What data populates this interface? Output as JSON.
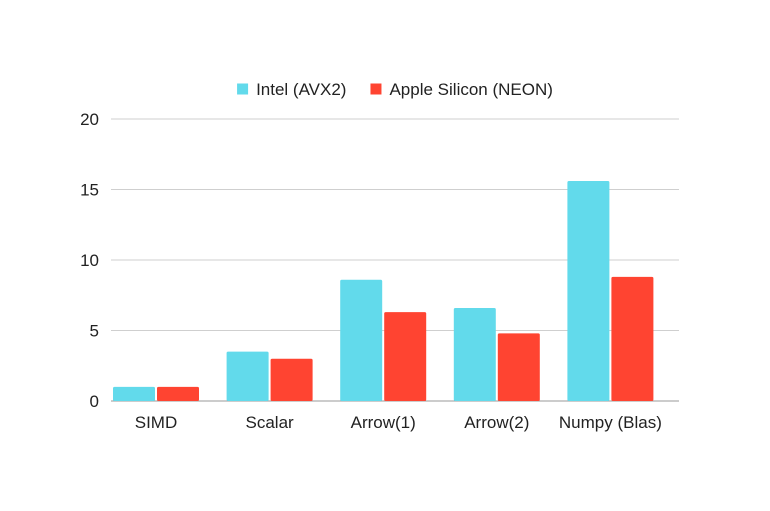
{
  "chart_data": {
    "type": "bar",
    "categories": [
      "SIMD",
      "Scalar",
      "Arrow(1)",
      "Arrow(2)",
      "Numpy (Blas)"
    ],
    "series": [
      {
        "name": "Intel (AVX2)",
        "color": "#62DAEB",
        "values": [
          1.0,
          3.5,
          8.6,
          6.6,
          15.6
        ]
      },
      {
        "name": "Apple Silicon (NEON)",
        "color": "#FF4431",
        "values": [
          1.0,
          3.0,
          6.3,
          4.8,
          8.8
        ]
      }
    ],
    "yticks": [
      "0",
      "5",
      "10",
      "15",
      "20"
    ],
    "ylim": [
      0,
      20
    ],
    "grid": true,
    "legend": "top-center",
    "title": "",
    "xlabel": "",
    "ylabel": ""
  }
}
